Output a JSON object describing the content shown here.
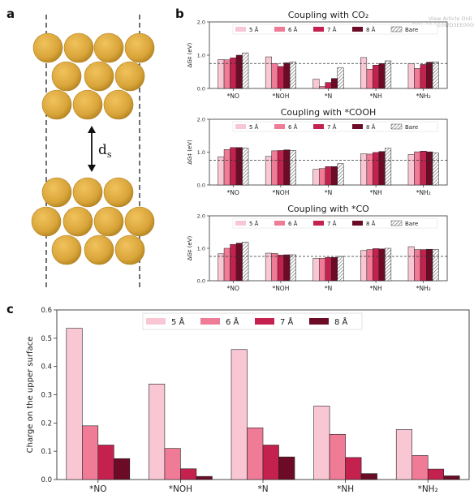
{
  "header_note": {
    "line1": "View Article Onli",
    "line2": "DOI: 10.1039/D3EE00008"
  },
  "panel_a": {
    "letter": "a",
    "ds_main": "d",
    "ds_sub": "s",
    "atom_color": "#d9a53a"
  },
  "panel_b": {
    "letter": "b"
  },
  "panel_c": {
    "letter": "c"
  },
  "colors": {
    "5": "#f9c6d4",
    "6": "#ef7b97",
    "7": "#c4214f",
    "8": "#6b0b26",
    "bare_hatch": "#555555"
  },
  "chart_data": [
    {
      "type": "bar",
      "title": "Coupling with CO₂",
      "ylabel": "ΔG‡ (eV)",
      "ylim": [
        0,
        2.0
      ],
      "yticks": [
        "0.0",
        "1.0",
        "2.0"
      ],
      "reference_line": 0.75,
      "categories": [
        "*NO",
        "*NOH",
        "*N",
        "*NH",
        "*NH₂"
      ],
      "series": [
        {
          "name": "5 Å",
          "values": [
            0.87,
            0.95,
            0.28,
            0.93,
            0.75
          ]
        },
        {
          "name": "6 Å",
          "values": [
            0.86,
            0.75,
            0.06,
            0.58,
            0.6
          ]
        },
        {
          "name": "7 Å",
          "values": [
            0.92,
            0.66,
            0.18,
            0.7,
            0.72
          ]
        },
        {
          "name": "8 Å",
          "values": [
            1.0,
            0.77,
            0.3,
            0.75,
            0.79
          ]
        },
        {
          "name": "Bare",
          "values": [
            1.07,
            0.8,
            0.62,
            0.83,
            0.8
          ]
        }
      ]
    },
    {
      "type": "bar",
      "title": "Coupling with *COOH",
      "ylabel": "ΔG‡ (eV)",
      "ylim": [
        0,
        2.0
      ],
      "yticks": [
        "0.0",
        "1.0",
        "2.0"
      ],
      "reference_line": 0.75,
      "categories": [
        "*NO",
        "*NOH",
        "*N",
        "*NH",
        "*NH₂"
      ],
      "series": [
        {
          "name": "5 Å",
          "values": [
            0.86,
            0.87,
            0.48,
            0.95,
            0.93
          ]
        },
        {
          "name": "6 Å",
          "values": [
            1.08,
            1.04,
            0.5,
            0.94,
            1.01
          ]
        },
        {
          "name": "7 Å",
          "values": [
            1.14,
            1.05,
            0.56,
            0.99,
            1.03
          ]
        },
        {
          "name": "8 Å",
          "values": [
            1.14,
            1.07,
            0.56,
            1.02,
            1.01
          ]
        },
        {
          "name": "Bare",
          "values": [
            1.12,
            1.05,
            0.65,
            1.12,
            0.98
          ]
        }
      ]
    },
    {
      "type": "bar",
      "title": "Coupling with *CO",
      "ylabel": "ΔG‡ (eV)",
      "ylim": [
        0,
        2.0
      ],
      "yticks": [
        "0.0",
        "1.0",
        "2.0"
      ],
      "reference_line": 0.75,
      "categories": [
        "*NO",
        "*NOH",
        "*N",
        "*NH",
        "*NH₂"
      ],
      "series": [
        {
          "name": "5 Å",
          "values": [
            0.83,
            0.85,
            0.69,
            0.93,
            1.05
          ]
        },
        {
          "name": "6 Å",
          "values": [
            1.0,
            0.84,
            0.69,
            0.96,
            0.96
          ]
        },
        {
          "name": "7 Å",
          "values": [
            1.12,
            0.79,
            0.72,
            0.99,
            0.96
          ]
        },
        {
          "name": "8 Å",
          "values": [
            1.16,
            0.8,
            0.72,
            0.98,
            0.97
          ]
        },
        {
          "name": "Bare",
          "values": [
            1.19,
            0.8,
            0.75,
            1.0,
            0.96
          ]
        }
      ]
    },
    {
      "type": "bar",
      "title": "",
      "ylabel": "Charge on the upper surface",
      "ylim": [
        0,
        0.6
      ],
      "yticks": [
        "0.0",
        "0.1",
        "0.2",
        "0.3",
        "0.4",
        "0.5",
        "0.6"
      ],
      "categories": [
        "*NO",
        "*NOH",
        "*N",
        "*NH",
        "*NH₂"
      ],
      "series": [
        {
          "name": "5 Å",
          "values": [
            0.535,
            0.338,
            0.46,
            0.26,
            0.177
          ]
        },
        {
          "name": "6 Å",
          "values": [
            0.19,
            0.11,
            0.183,
            0.16,
            0.085
          ]
        },
        {
          "name": "7 Å",
          "values": [
            0.122,
            0.038,
            0.122,
            0.078,
            0.037
          ]
        },
        {
          "name": "8 Å",
          "values": [
            0.074,
            0.011,
            0.08,
            0.021,
            0.013
          ]
        }
      ]
    }
  ]
}
